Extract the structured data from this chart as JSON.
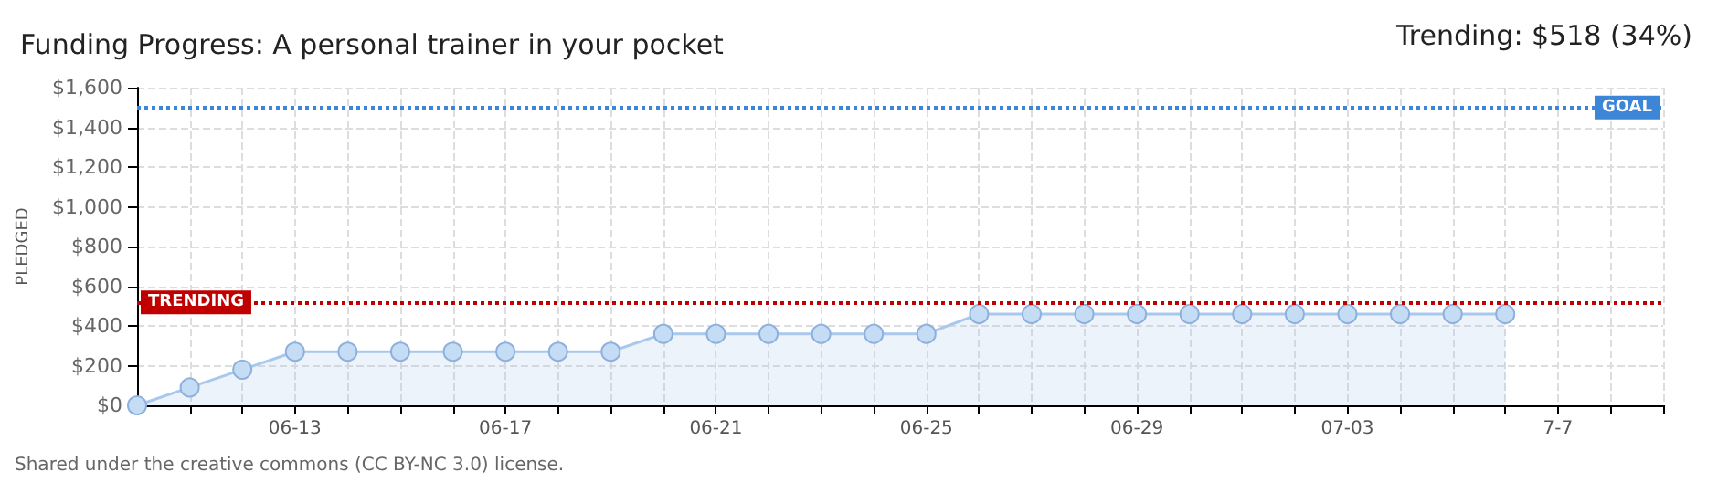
{
  "chart_data": {
    "type": "area",
    "title": "Funding Progress: A personal trainer in your pocket",
    "ylabel": "PLEDGED",
    "annotations": [
      "Trending: $518 (34%)",
      "Shared under the creative commons (CC BY-NC 3.0) license."
    ],
    "categories": [
      null,
      null,
      null,
      "06-13",
      null,
      null,
      null,
      "06-17",
      null,
      null,
      null,
      "06-21",
      null,
      null,
      null,
      "06-25",
      null,
      null,
      null,
      "06-29",
      null,
      null,
      null,
      "07-03",
      null,
      null,
      null,
      "7-7",
      null,
      null
    ],
    "series": [
      {
        "color": "#a9c8ee",
        "values": [
          0,
          90,
          180,
          270,
          270,
          270,
          270,
          270,
          270,
          270,
          360,
          360,
          360,
          360,
          360,
          360,
          460,
          460,
          460,
          460,
          460,
          460,
          460,
          460,
          460,
          460,
          460,
          null,
          null,
          null
        ]
      }
    ],
    "ylim": [
      0,
      1600
    ],
    "yticks": [
      {
        "value": 0,
        "label": "$0"
      },
      {
        "value": 200,
        "label": "$200"
      },
      {
        "value": 400,
        "label": "$400"
      },
      {
        "value": 600,
        "label": "$600"
      },
      {
        "value": 800,
        "label": "$800"
      },
      {
        "value": 1000,
        "label": "$1,000"
      },
      {
        "value": 1200,
        "label": "$1,200"
      },
      {
        "value": 1400,
        "label": "$1,400"
      },
      {
        "value": 1600,
        "label": "$1,600"
      }
    ],
    "ref_lines": [
      {
        "axis": "y",
        "value": 1500,
        "label": "GOAL",
        "color": "#3d85d6",
        "line_style": "dotted"
      },
      {
        "axis": "y",
        "value": 518,
        "label": "TRENDING",
        "color": "#c00000",
        "line_style": "dotted"
      }
    ],
    "grid": true,
    "marker": "circle"
  }
}
